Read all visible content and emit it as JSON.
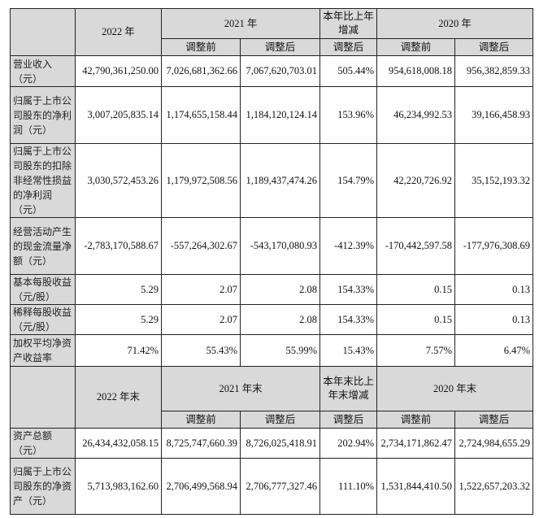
{
  "section1": {
    "headers": {
      "col2022": "2022 年",
      "col2021": "2021 年",
      "change": "本年比上年增减",
      "col2020": "2020 年",
      "sub": [
        "调整前",
        "调整后",
        "调整后",
        "调整前",
        "调整后"
      ]
    },
    "rows": [
      {
        "label": "营业收入（元）",
        "values": [
          "42,790,361,250.00",
          "7,026,681,362.66",
          "7,067,620,703.01",
          "505.44%",
          "954,618,008.18",
          "956,382,859.33"
        ]
      },
      {
        "label": "归属于上市公司股东的净利润（元）",
        "values": [
          "3,007,205,835.14",
          "1,174,655,158.44",
          "1,184,120,124.14",
          "153.96%",
          "46,234,992.53",
          "39,166,458.93"
        ]
      },
      {
        "label": "归属于上市公司股东的扣除非经常性损益的净利润（元）",
        "values": [
          "3,030,572,453.26",
          "1,179,972,508.56",
          "1,189,437,474.26",
          "154.79%",
          "42,220,726.92",
          "35,152,193.32"
        ]
      },
      {
        "label": "经营活动产生的现金流量净额（元）",
        "values": [
          "-2,783,170,588.67",
          "-557,264,302.67",
          "-543,170,080.93",
          "-412.39%",
          "-170,442,597.58",
          "-177,976,308.69"
        ]
      },
      {
        "label": "基本每股收益（元/股）",
        "values": [
          "5.29",
          "2.07",
          "2.08",
          "154.33%",
          "0.15",
          "0.13"
        ]
      },
      {
        "label": "稀释每股收益（元/股）",
        "values": [
          "5.29",
          "2.07",
          "2.08",
          "154.33%",
          "0.15",
          "0.13"
        ]
      },
      {
        "label": "加权平均净资产收益率",
        "values": [
          "71.42%",
          "55.43%",
          "55.99%",
          "15.43%",
          "7.57%",
          "6.47%"
        ]
      }
    ]
  },
  "section2": {
    "headers": {
      "col2022": "2022 年末",
      "col2021": "2021 年末",
      "change": "本年末比上年末增减",
      "col2020": "2020 年末",
      "sub": [
        "调整前",
        "调整后",
        "调整后",
        "调整前",
        "调整后"
      ]
    },
    "rows": [
      {
        "label": "资产总额（元）",
        "values": [
          "26,434,432,058.15",
          "8,725,747,660.39",
          "8,726,025,418.91",
          "202.94%",
          "2,734,171,862.47",
          "2,724,984,655.29"
        ]
      },
      {
        "label": "归属于上市公司股东的净资产（元）",
        "values": [
          "5,713,983,162.60",
          "2,706,499,568.94",
          "2,706,777,327.46",
          "111.10%",
          "1,531,844,410.50",
          "1,522,657,203.32"
        ]
      }
    ]
  }
}
